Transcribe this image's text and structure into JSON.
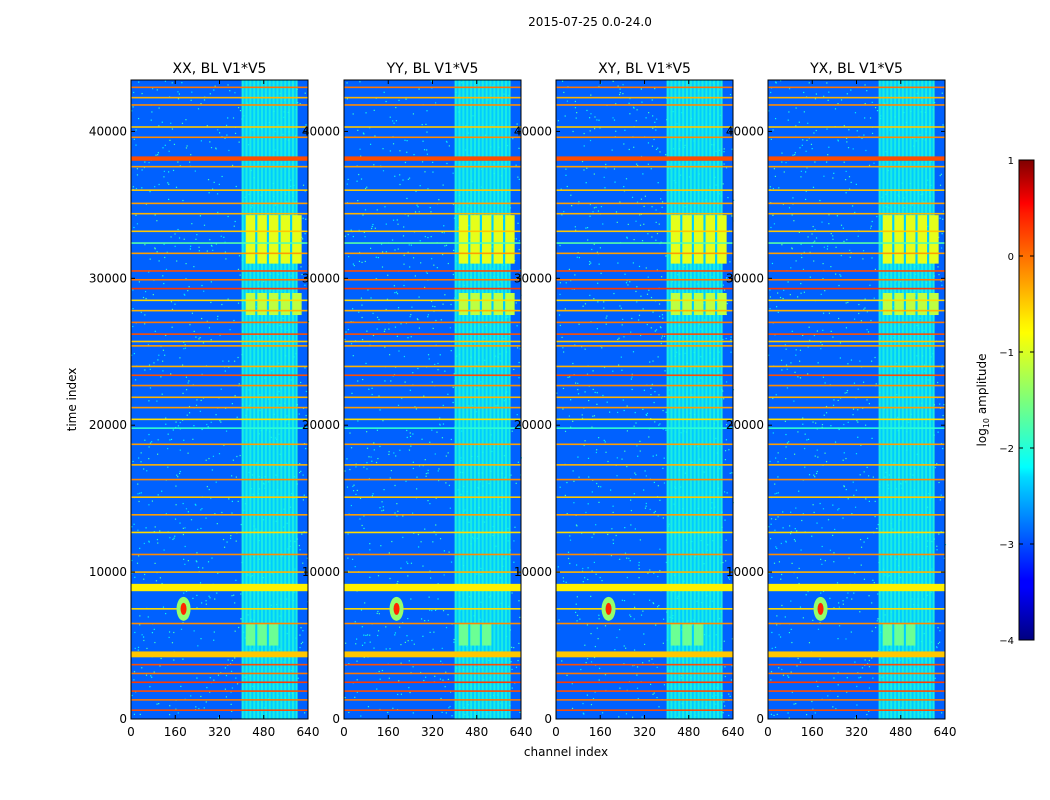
{
  "figure_title": "2015-07-25 0.0-24.0",
  "colorbar": {
    "label": "log10 amplitude",
    "label_base": "log",
    "label_sub": "10",
    "label_rest": " amplitude",
    "range": [
      -4,
      1
    ],
    "tick_values": [
      1,
      0,
      -1,
      -2,
      -3,
      -4
    ],
    "tick_labels": [
      "1",
      "0",
      "−1",
      "−2",
      "−3",
      "−4"
    ],
    "colormap": "jet"
  },
  "chart_data": [
    {
      "type": "heatmap",
      "title": "XX, BL V1*V5",
      "xlabel": "",
      "ylabel": "time index",
      "xlim": [
        0,
        640
      ],
      "ylim": [
        0,
        43500
      ],
      "xticks": [
        0,
        160,
        320,
        480,
        640
      ],
      "yticks": [
        0,
        10000,
        20000,
        30000,
        40000
      ],
      "xtick_labels": [
        "0",
        "160",
        "320",
        "480",
        "640"
      ],
      "ytick_labels": [
        "0",
        "10000",
        "20000",
        "30000",
        "40000"
      ]
    },
    {
      "type": "heatmap",
      "title": "YY, BL V1*V5",
      "xlabel": "channel index",
      "ylabel": "",
      "xlim": [
        0,
        640
      ],
      "ylim": [
        0,
        43500
      ],
      "xticks": [
        0,
        160,
        320,
        480,
        640
      ],
      "yticks": [
        0,
        10000,
        20000,
        30000,
        40000
      ],
      "xtick_labels": [
        "0",
        "160",
        "320",
        "480",
        "640"
      ],
      "ytick_labels": [
        "0",
        "10000",
        "20000",
        "30000",
        "40000"
      ]
    },
    {
      "type": "heatmap",
      "title": "XY, BL V1*V5",
      "xlabel": "",
      "ylabel": "",
      "xlim": [
        0,
        640
      ],
      "ylim": [
        0,
        43500
      ],
      "xticks": [
        0,
        160,
        320,
        480,
        640
      ],
      "yticks": [
        0,
        10000,
        20000,
        30000,
        40000
      ],
      "xtick_labels": [
        "0",
        "160",
        "320",
        "480",
        "640"
      ],
      "ytick_labels": [
        "0",
        "10000",
        "20000",
        "30000",
        "40000"
      ]
    },
    {
      "type": "heatmap",
      "title": "YX, BL V1*V5",
      "xlabel": "",
      "ylabel": "",
      "xlim": [
        0,
        640
      ],
      "ylim": [
        0,
        43500
      ],
      "xticks": [
        0,
        160,
        320,
        480,
        640
      ],
      "yticks": [
        0,
        10000,
        20000,
        30000,
        40000
      ],
      "xtick_labels": [
        "0",
        "160",
        "320",
        "480",
        "640"
      ],
      "ytick_labels": [
        "0",
        "10000",
        "20000",
        "30000",
        "40000"
      ]
    }
  ],
  "heatmap_features": {
    "background_level": -2.9,
    "rfi_band_channels": [
      400,
      600
    ],
    "horizontal_bands": [
      {
        "t": 43000,
        "level": -0.2
      },
      {
        "t": 42300,
        "level": -0.5
      },
      {
        "t": 41800,
        "level": -0.3
      },
      {
        "t": 40300,
        "level": -0.6
      },
      {
        "t": 39600,
        "level": -0.3
      },
      {
        "t": 38100,
        "level": 0.0
      },
      {
        "t": 37600,
        "level": -0.4
      },
      {
        "t": 36000,
        "level": -0.6
      },
      {
        "t": 35100,
        "level": -0.4
      },
      {
        "t": 34400,
        "level": -0.5
      },
      {
        "t": 33200,
        "level": -0.6
      },
      {
        "t": 32400,
        "level": -1.7
      },
      {
        "t": 31700,
        "level": -0.4
      },
      {
        "t": 30500,
        "level": 0.0
      },
      {
        "t": 29900,
        "level": -0.2
      },
      {
        "t": 29300,
        "level": 0.1
      },
      {
        "t": 28500,
        "level": -0.7
      },
      {
        "t": 27800,
        "level": -0.5
      },
      {
        "t": 27000,
        "level": -0.2
      },
      {
        "t": 26200,
        "level": 0.0
      },
      {
        "t": 25700,
        "level": -0.6
      },
      {
        "t": 25400,
        "level": -0.4
      },
      {
        "t": 24000,
        "level": -0.5
      },
      {
        "t": 23400,
        "level": 0.0
      },
      {
        "t": 22700,
        "level": -0.3
      },
      {
        "t": 21900,
        "level": -0.5
      },
      {
        "t": 21200,
        "level": -0.4
      },
      {
        "t": 20400,
        "level": -0.7
      },
      {
        "t": 19800,
        "level": -1.9
      },
      {
        "t": 18700,
        "level": -0.4
      },
      {
        "t": 17300,
        "level": -0.5
      },
      {
        "t": 16300,
        "level": -0.3
      },
      {
        "t": 15100,
        "level": -0.6
      },
      {
        "t": 13900,
        "level": -0.4
      },
      {
        "t": 12700,
        "level": -0.7
      },
      {
        "t": 11200,
        "level": -0.3
      },
      {
        "t": 10000,
        "level": -0.5
      },
      {
        "t": 8900,
        "level": -0.6
      },
      {
        "t": 7500,
        "level": -0.7
      },
      {
        "t": 6500,
        "level": -0.3
      },
      {
        "t": 4500,
        "level": -0.5
      },
      {
        "t": 3700,
        "level": 0.0
      },
      {
        "t": 3100,
        "level": -0.2
      },
      {
        "t": 2500,
        "level": 0.1
      },
      {
        "t": 1900,
        "level": 0.0
      },
      {
        "t": 1300,
        "level": -0.2
      },
      {
        "t": 600,
        "level": 0.0
      }
    ],
    "thick_bands": [
      {
        "t0": 38000,
        "t1": 38300,
        "level": 0.0
      },
      {
        "t0": 8700,
        "t1": 9200,
        "level": -0.8
      },
      {
        "t0": 4200,
        "t1": 4600,
        "level": -0.6
      }
    ],
    "bright_blocks": [
      {
        "c0": 415,
        "c1": 600,
        "t0": 31000,
        "t1": 34300,
        "level": -1.0
      },
      {
        "c0": 415,
        "c1": 600,
        "t0": 27500,
        "t1": 29000,
        "level": -1.2
      },
      {
        "c0": 415,
        "c1": 540,
        "t0": 5000,
        "t1": 6500,
        "level": -1.6
      }
    ],
    "source": {
      "channel": 190,
      "time": 7500,
      "level": 0.2
    }
  }
}
